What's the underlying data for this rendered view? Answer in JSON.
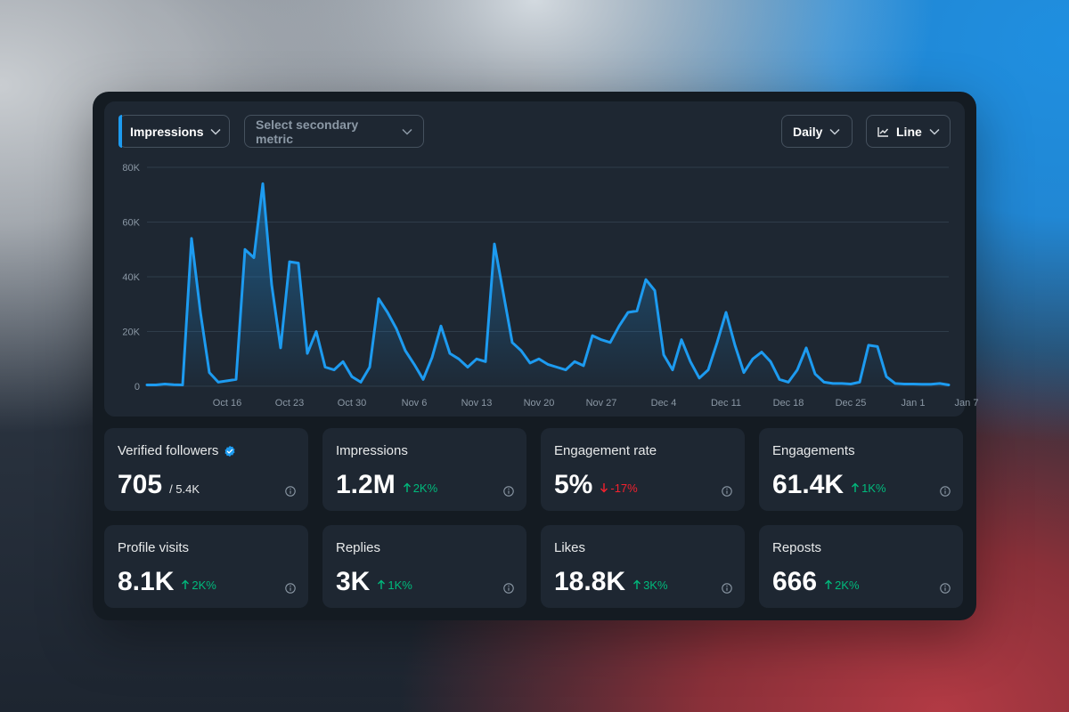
{
  "controls": {
    "primary_metric": "Impressions",
    "secondary_metric_placeholder": "Select secondary metric",
    "interval": "Daily",
    "chart_type": "Line"
  },
  "chart_data": {
    "type": "area",
    "title": "",
    "xlabel": "",
    "ylabel": "",
    "ylim": [
      0,
      80000
    ],
    "yticks": [
      0,
      20000,
      40000,
      60000,
      80000
    ],
    "ytick_labels": [
      "0",
      "20K",
      "40K",
      "60K",
      "80K"
    ],
    "x_start_day": 0,
    "xticks": [
      {
        "day": 9,
        "label": "Oct 16"
      },
      {
        "day": 16,
        "label": "Oct 23"
      },
      {
        "day": 23,
        "label": "Oct 30"
      },
      {
        "day": 30,
        "label": "Nov 6"
      },
      {
        "day": 37,
        "label": "Nov 13"
      },
      {
        "day": 44,
        "label": "Nov 20"
      },
      {
        "day": 51,
        "label": "Nov 27"
      },
      {
        "day": 58,
        "label": "Dec 4"
      },
      {
        "day": 65,
        "label": "Dec 11"
      },
      {
        "day": 72,
        "label": "Dec 18"
      },
      {
        "day": 79,
        "label": "Dec 25"
      },
      {
        "day": 86,
        "label": "Jan 1"
      },
      {
        "day": 92,
        "label": "Jan 7"
      }
    ],
    "series": [
      {
        "name": "Impressions",
        "color": "#1d9bf0",
        "values": [
          500,
          500,
          800,
          600,
          500,
          54000,
          27000,
          5000,
          1500,
          2000,
          2500,
          50000,
          47000,
          74000,
          37000,
          14000,
          45500,
          45000,
          12000,
          20000,
          7000,
          6000,
          9000,
          3500,
          1500,
          7000,
          32000,
          27000,
          21000,
          13000,
          8000,
          2500,
          10500,
          22000,
          12000,
          10000,
          7000,
          10000,
          9000,
          52000,
          34000,
          16000,
          13000,
          8500,
          10000,
          8000,
          7000,
          6000,
          9000,
          7500,
          18500,
          17000,
          16000,
          22000,
          27000,
          27500,
          39000,
          35000,
          11500,
          6000,
          17000,
          9000,
          3000,
          6000,
          16000,
          27000,
          15000,
          5000,
          10000,
          12500,
          9000,
          2500,
          1500,
          6000,
          14000,
          4500,
          1500,
          1000,
          1000,
          800,
          1500,
          15000,
          14500,
          3500,
          1000,
          800,
          800,
          700,
          700,
          1000,
          500
        ]
      }
    ]
  },
  "stats": [
    {
      "label": "Verified followers",
      "value": "705",
      "sub": "/ 5.4K",
      "verified": true
    },
    {
      "label": "Impressions",
      "value": "1.2M",
      "change": "2K%",
      "direction": "up"
    },
    {
      "label": "Engagement rate",
      "value": "5%",
      "change": "-17%",
      "direction": "down"
    },
    {
      "label": "Engagements",
      "value": "61.4K",
      "change": "1K%",
      "direction": "up"
    },
    {
      "label": "Profile visits",
      "value": "8.1K",
      "change": "2K%",
      "direction": "up"
    },
    {
      "label": "Replies",
      "value": "3K",
      "change": "1K%",
      "direction": "up"
    },
    {
      "label": "Likes",
      "value": "18.8K",
      "change": "3K%",
      "direction": "up"
    },
    {
      "label": "Reposts",
      "value": "666",
      "change": "2K%",
      "direction": "up"
    }
  ],
  "colors": {
    "accent": "#1d9bf0",
    "positive": "#00ba7c",
    "negative": "#f4212e"
  }
}
